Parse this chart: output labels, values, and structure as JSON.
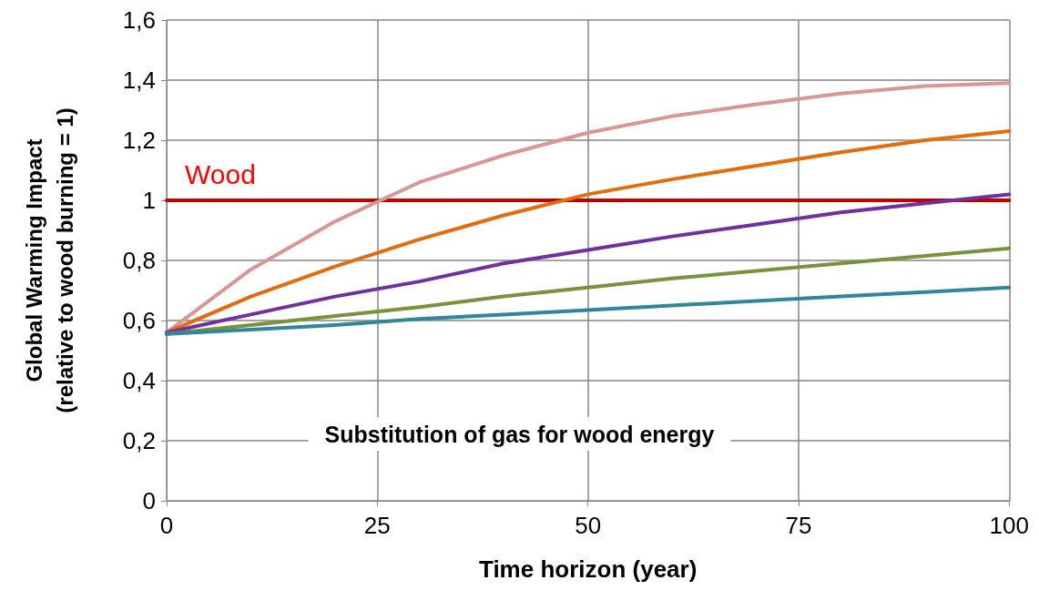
{
  "chart_data": {
    "type": "line",
    "xlabel": "Time horizon (year)",
    "ylabel": "Global Warming Impact\n(relative to wood burning = 1)",
    "annotations": [
      "Substitution of gas for wood energy"
    ],
    "x": [
      0,
      10,
      20,
      30,
      40,
      50,
      60,
      70,
      80,
      90,
      100
    ],
    "series": [
      {
        "name": "Wood",
        "color": "#c00000",
        "x": [
          0,
          100
        ],
        "values": [
          1,
          1
        ]
      },
      {
        "color": "#d99694",
        "values": [
          0.56,
          0.77,
          0.93,
          1.06,
          1.15,
          1.225,
          1.28,
          1.32,
          1.355,
          1.38,
          1.39
        ]
      },
      {
        "color": "#e46c0a",
        "values": [
          0.56,
          0.68,
          0.78,
          0.87,
          0.95,
          1.02,
          1.07,
          1.115,
          1.16,
          1.2,
          1.23
        ]
      },
      {
        "color": "#7030a0",
        "values": [
          0.56,
          0.62,
          0.68,
          0.73,
          0.79,
          0.835,
          0.88,
          0.92,
          0.96,
          0.99,
          1.02
        ]
      },
      {
        "color": "#77933c",
        "values": [
          0.555,
          0.585,
          0.615,
          0.645,
          0.68,
          0.71,
          0.74,
          0.765,
          0.79,
          0.815,
          0.84
        ]
      },
      {
        "color": "#31859c",
        "values": [
          0.555,
          0.57,
          0.585,
          0.605,
          0.62,
          0.635,
          0.65,
          0.665,
          0.68,
          0.695,
          0.71
        ]
      }
    ],
    "xlim": [
      0,
      100
    ],
    "xticks": [
      0,
      25,
      50,
      75,
      100
    ],
    "ylim": [
      0,
      1.6
    ],
    "yticks": [
      0,
      {
        "value": 0.2,
        "label": "0,2"
      },
      {
        "value": 0.4,
        "label": "0,4"
      },
      {
        "value": 0.6,
        "label": "0,6"
      },
      {
        "value": 0.8,
        "label": "0,8"
      },
      1,
      {
        "value": 1.2,
        "label": "1,2"
      },
      {
        "value": 1.4,
        "label": "1,4"
      },
      {
        "value": 1.6,
        "label": "1,6"
      }
    ],
    "grid": true
  }
}
